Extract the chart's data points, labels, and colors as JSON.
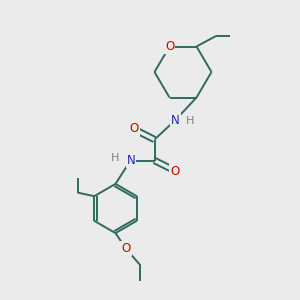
{
  "background_color": "#ebebeb",
  "bond_color": "#2d6b5e",
  "atom_colors": {
    "O": "#cc0000",
    "N": "#2222cc",
    "C": "#2d6b5e",
    "H": "#808080"
  },
  "figsize": [
    3.0,
    3.0
  ],
  "dpi": 100
}
